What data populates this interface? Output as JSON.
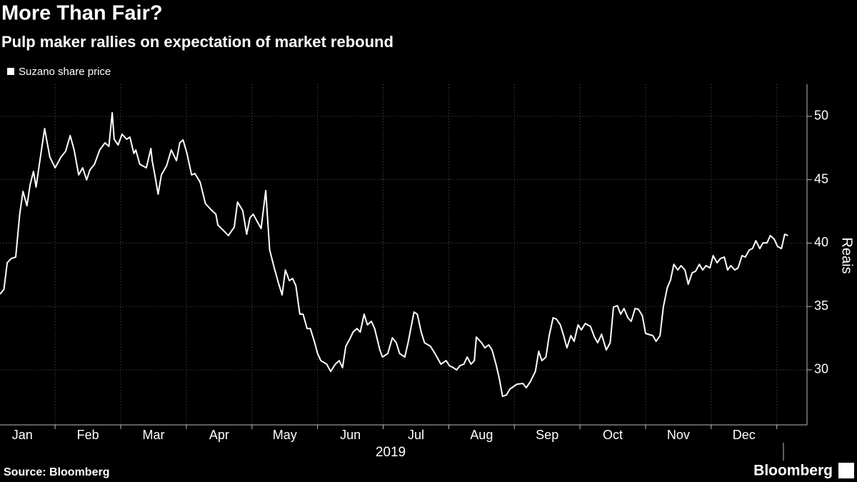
{
  "chart_data": {
    "type": "line",
    "title": "More Than Fair?",
    "subtitle": "Pulp maker rallies on expectation of market rebound",
    "x_label": "2019",
    "y_label": "Reais",
    "source": "Source: Bloomberg",
    "branding": "Bloomberg",
    "xlim": [
      0.16,
      12.46
    ],
    "ylim": [
      25.66,
      52.53
    ],
    "xticks": [
      {
        "value": 0.5,
        "label": "Jan"
      },
      {
        "value": 1.5,
        "label": "Feb"
      },
      {
        "value": 2.5,
        "label": "Mar"
      },
      {
        "value": 3.5,
        "label": "Apr"
      },
      {
        "value": 4.5,
        "label": "May"
      },
      {
        "value": 5.5,
        "label": "Jun"
      },
      {
        "value": 6.5,
        "label": "Jul"
      },
      {
        "value": 7.5,
        "label": "Aug"
      },
      {
        "value": 8.5,
        "label": "Sep"
      },
      {
        "value": 9.5,
        "label": "Oct"
      },
      {
        "value": 10.5,
        "label": "Nov"
      },
      {
        "value": 11.5,
        "label": "Dec"
      }
    ],
    "yticks": [
      30,
      35,
      40,
      45,
      50
    ],
    "grid": true,
    "x": [
      0.16,
      0.22,
      0.27,
      0.33,
      0.4,
      0.46,
      0.51,
      0.57,
      0.62,
      0.67,
      0.71,
      0.76,
      0.84,
      0.87,
      0.92,
      1.0,
      1.09,
      1.16,
      1.23,
      1.29,
      1.36,
      1.42,
      1.48,
      1.53,
      1.6,
      1.68,
      1.76,
      1.82,
      1.87,
      1.9,
      1.96,
      2.02,
      2.09,
      2.14,
      2.2,
      2.23,
      2.29,
      2.39,
      2.46,
      2.48,
      2.53,
      2.57,
      2.62,
      2.7,
      2.77,
      2.85,
      2.9,
      2.95,
      3.01,
      3.08,
      3.13,
      3.21,
      3.29,
      3.37,
      3.45,
      3.48,
      3.59,
      3.64,
      3.73,
      3.78,
      3.86,
      3.92,
      3.97,
      4.02,
      4.08,
      4.14,
      4.21,
      4.27,
      4.34,
      4.4,
      4.46,
      4.51,
      4.57,
      4.62,
      4.67,
      4.73,
      4.78,
      4.84,
      4.89,
      4.95,
      5.0,
      5.05,
      5.14,
      5.2,
      5.27,
      5.33,
      5.38,
      5.43,
      5.49,
      5.54,
      5.6,
      5.65,
      5.71,
      5.76,
      5.82,
      5.87,
      5.95,
      5.99,
      6.07,
      6.14,
      6.2,
      6.25,
      6.33,
      6.38,
      6.47,
      6.52,
      6.58,
      6.63,
      6.72,
      6.79,
      6.88,
      6.96,
      7.01,
      7.07,
      7.12,
      7.17,
      7.23,
      7.28,
      7.34,
      7.39,
      7.42,
      7.5,
      7.55,
      7.61,
      7.66,
      7.72,
      7.77,
      7.82,
      7.88,
      7.93,
      8.04,
      8.13,
      8.18,
      8.24,
      8.32,
      8.37,
      8.42,
      8.48,
      8.53,
      8.59,
      8.64,
      8.7,
      8.75,
      8.8,
      8.86,
      8.91,
      8.97,
      9.02,
      9.08,
      9.16,
      9.22,
      9.27,
      9.33,
      9.4,
      9.46,
      9.51,
      9.57,
      9.62,
      9.67,
      9.73,
      9.78,
      9.84,
      9.89,
      9.95,
      10.0,
      10.11,
      10.16,
      10.22,
      10.27,
      10.33,
      10.38,
      10.43,
      10.49,
      10.54,
      10.6,
      10.65,
      10.71,
      10.76,
      10.82,
      10.87,
      10.92,
      10.98,
      11.03,
      11.09,
      11.14,
      11.2,
      11.25,
      11.3,
      11.36,
      11.41,
      11.47,
      11.52,
      11.58,
      11.63,
      11.68,
      11.74,
      11.79,
      11.85,
      11.9,
      11.96,
      12.01,
      12.07,
      12.12,
      12.17
    ],
    "series": [
      {
        "name": "Suzano share price",
        "color": "#ffffff",
        "values": [
          35.97,
          36.36,
          38.45,
          38.78,
          38.9,
          42.28,
          44.08,
          42.95,
          44.64,
          45.66,
          44.42,
          46.22,
          49.04,
          48.19,
          46.79,
          45.94,
          46.79,
          47.24,
          48.48,
          47.35,
          45.38,
          45.94,
          44.98,
          45.77,
          46.22,
          47.35,
          47.91,
          47.63,
          50.28,
          48.19,
          47.74,
          48.59,
          48.19,
          48.36,
          47.07,
          47.35,
          46.22,
          45.94,
          47.46,
          46.5,
          45.09,
          43.86,
          45.38,
          46.11,
          47.35,
          46.5,
          47.91,
          48.14,
          47.07,
          45.38,
          45.49,
          44.81,
          43.12,
          42.67,
          42.28,
          41.43,
          40.87,
          40.59,
          41.26,
          43.24,
          42.56,
          40.7,
          42.0,
          42.28,
          41.71,
          41.15,
          44.14,
          39.46,
          38.05,
          36.93,
          35.91,
          37.88,
          37.04,
          37.21,
          36.64,
          34.39,
          34.39,
          33.26,
          33.26,
          32.25,
          31.29,
          30.73,
          30.45,
          29.88,
          30.45,
          30.73,
          30.17,
          31.86,
          32.42,
          32.98,
          33.26,
          32.98,
          34.39,
          33.55,
          33.83,
          33.26,
          31.57,
          31.01,
          31.29,
          32.53,
          32.14,
          31.29,
          31.01,
          32.14,
          34.56,
          34.39,
          32.98,
          32.14,
          31.86,
          31.29,
          30.45,
          30.73,
          30.33,
          30.17,
          30.0,
          30.33,
          30.45,
          31.01,
          30.45,
          30.73,
          32.59,
          32.14,
          31.74,
          31.97,
          31.57,
          30.45,
          29.32,
          27.91,
          28.02,
          28.47,
          28.87,
          28.93,
          28.59,
          29.04,
          29.88,
          31.46,
          30.73,
          31.01,
          32.7,
          34.11,
          34.0,
          33.55,
          32.7,
          31.74,
          32.7,
          32.25,
          33.55,
          33.15,
          33.66,
          33.43,
          32.59,
          32.14,
          32.81,
          31.57,
          32.14,
          34.95,
          35.07,
          34.39,
          34.84,
          34.11,
          33.83,
          34.84,
          34.78,
          34.28,
          32.87,
          32.7,
          32.25,
          32.7,
          34.95,
          36.47,
          37.09,
          38.33,
          37.88,
          38.22,
          37.88,
          36.76,
          37.66,
          37.77,
          38.33,
          37.88,
          38.22,
          38.05,
          39.01,
          38.45,
          38.78,
          38.9,
          37.88,
          38.22,
          37.88,
          38.05,
          39.01,
          38.9,
          39.46,
          39.57,
          40.19,
          39.57,
          40.02,
          40.02,
          40.59,
          40.31,
          39.74,
          39.57,
          40.7,
          40.59
        ]
      }
    ]
  }
}
